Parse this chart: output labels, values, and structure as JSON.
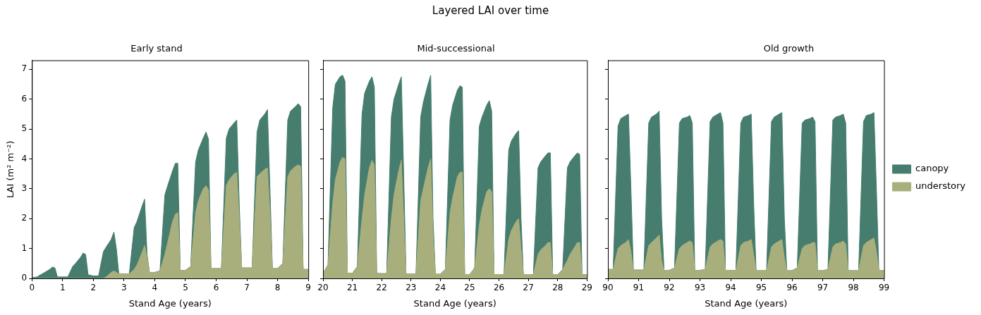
{
  "chart_data": [
    {
      "type": "area",
      "title": "Early stand",
      "annotations": [
        "Layered LAI over time"
      ],
      "xlabel": "Stand Age (years)",
      "ylabel": "LAI (m² m⁻²)",
      "xlim": [
        0,
        9
      ],
      "xticks": [
        0,
        1,
        2,
        3,
        4,
        5,
        6,
        7,
        8,
        9
      ],
      "ylim": [
        0,
        7.3
      ],
      "yticks": [
        0,
        1,
        2,
        3,
        4,
        5,
        6,
        7
      ],
      "grid": false,
      "x": [
        0,
        0.17,
        0.33,
        0.42,
        0.58,
        0.67,
        0.75,
        0.83,
        1,
        1.17,
        1.33,
        1.42,
        1.58,
        1.67,
        1.75,
        1.83,
        2,
        2.17,
        2.33,
        2.42,
        2.58,
        2.67,
        2.75,
        2.83,
        3,
        3.17,
        3.33,
        3.42,
        3.58,
        3.67,
        3.75,
        3.83,
        4,
        4.17,
        4.33,
        4.42,
        4.58,
        4.67,
        4.75,
        4.83,
        5,
        5.17,
        5.33,
        5.42,
        5.58,
        5.67,
        5.75,
        5.83,
        6,
        6.17,
        6.33,
        6.42,
        6.58,
        6.67,
        6.75,
        6.83,
        7,
        7.17,
        7.33,
        7.42,
        7.58,
        7.67,
        7.75,
        7.83,
        8,
        8.17,
        8.33,
        8.42,
        8.58,
        8.67,
        8.75,
        8.83,
        9
      ],
      "series": [
        {
          "color": "#467d6e",
          "values": [
            0.02,
            0.05,
            0.15,
            0.2,
            0.3,
            0.38,
            0.35,
            0.05,
            0.05,
            0.05,
            0.4,
            0.5,
            0.7,
            0.85,
            0.8,
            0.12,
            0.08,
            0.08,
            0.9,
            1.05,
            1.3,
            1.55,
            1.0,
            0.15,
            0.15,
            0.15,
            1.7,
            1.9,
            2.4,
            2.65,
            0.8,
            0.2,
            0.2,
            0.25,
            2.8,
            3.1,
            3.6,
            3.85,
            3.85,
            0.27,
            0.27,
            0.4,
            3.9,
            4.3,
            4.7,
            4.9,
            4.65,
            0.33,
            0.33,
            0.33,
            4.7,
            5.0,
            5.2,
            5.3,
            2.5,
            0.35,
            0.35,
            0.35,
            4.9,
            5.3,
            5.5,
            5.65,
            3.0,
            0.33,
            0.33,
            0.5,
            5.3,
            5.6,
            5.75,
            5.85,
            5.75,
            0.3,
            0.3
          ]
        },
        {
          "color": "#a8af7c",
          "values": [
            0,
            0,
            0,
            0,
            0,
            0,
            0,
            0,
            0,
            0,
            0,
            0,
            0,
            0,
            0,
            0,
            0,
            0,
            0,
            0.05,
            0.2,
            0.25,
            0.2,
            0.15,
            0.15,
            0.15,
            0.3,
            0.45,
            0.85,
            1.1,
            0.7,
            0.2,
            0.2,
            0.25,
            0.8,
            1.2,
            1.9,
            2.15,
            2.2,
            0.27,
            0.27,
            0.4,
            2.2,
            2.6,
            3.0,
            3.1,
            2.95,
            0.33,
            0.33,
            0.33,
            3.1,
            3.3,
            3.5,
            3.55,
            2.0,
            0.35,
            0.35,
            0.35,
            3.4,
            3.5,
            3.65,
            3.7,
            2.2,
            0.33,
            0.33,
            0.5,
            3.4,
            3.6,
            3.75,
            3.8,
            3.75,
            0.3,
            0.3
          ]
        }
      ]
    },
    {
      "type": "area",
      "title": "Mid-successional",
      "xlabel": "Stand Age (years)",
      "xlim": [
        20,
        29
      ],
      "xticks": [
        20,
        21,
        22,
        23,
        24,
        25,
        26,
        27,
        28,
        29
      ],
      "ylim": [
        0,
        7.3
      ],
      "yticks": [
        0,
        1,
        2,
        3,
        4,
        5,
        6,
        7
      ],
      "tick_labels": "x",
      "grid": false,
      "x": [
        20,
        20.17,
        20.33,
        20.42,
        20.58,
        20.67,
        20.75,
        20.83,
        21,
        21.17,
        21.33,
        21.42,
        21.58,
        21.67,
        21.75,
        21.83,
        22,
        22.17,
        22.33,
        22.42,
        22.58,
        22.67,
        22.75,
        22.83,
        23,
        23.17,
        23.33,
        23.42,
        23.58,
        23.67,
        23.75,
        23.83,
        24,
        24.17,
        24.33,
        24.42,
        24.58,
        24.67,
        24.75,
        24.83,
        25,
        25.17,
        25.33,
        25.42,
        25.58,
        25.67,
        25.75,
        25.83,
        26,
        26.17,
        26.33,
        26.42,
        26.58,
        26.67,
        26.75,
        26.83,
        27,
        27.17,
        27.33,
        27.42,
        27.58,
        27.67,
        27.75,
        27.83,
        28,
        28.17,
        28.33,
        28.42,
        28.58,
        28.67,
        28.75,
        28.83,
        29
      ],
      "series": [
        {
          "color": "#467d6e",
          "values": [
            0.17,
            0.45,
            5.7,
            6.5,
            6.75,
            6.8,
            6.6,
            0.17,
            0.17,
            0.4,
            5.5,
            6.2,
            6.6,
            6.75,
            6.4,
            0.17,
            0.16,
            0.16,
            5.4,
            6.0,
            6.5,
            6.75,
            3.5,
            0.15,
            0.15,
            0.15,
            5.4,
            5.9,
            6.5,
            6.8,
            2.0,
            0.14,
            0.14,
            0.3,
            5.3,
            5.8,
            6.3,
            6.45,
            6.4,
            0.13,
            0.13,
            0.35,
            5.1,
            5.4,
            5.8,
            5.95,
            5.6,
            0.13,
            0.13,
            0.13,
            4.3,
            4.6,
            4.85,
            4.95,
            2.0,
            0.12,
            0.12,
            0.12,
            3.7,
            3.9,
            4.1,
            4.2,
            4.2,
            0.12,
            0.12,
            0.3,
            3.7,
            3.9,
            4.1,
            4.2,
            4.15,
            0.12,
            0.12
          ]
        },
        {
          "color": "#a8af7c",
          "values": [
            0.17,
            0.45,
            2.5,
            3.3,
            3.9,
            4.05,
            4.0,
            0.17,
            0.17,
            0.4,
            2.0,
            2.8,
            3.7,
            3.95,
            3.8,
            0.17,
            0.16,
            0.16,
            2.0,
            2.8,
            3.6,
            3.95,
            2.0,
            0.15,
            0.15,
            0.15,
            2.6,
            3.0,
            3.7,
            4.0,
            1.5,
            0.14,
            0.14,
            0.3,
            2.2,
            2.7,
            3.4,
            3.55,
            3.55,
            0.13,
            0.13,
            0.35,
            1.8,
            2.3,
            2.9,
            3.0,
            2.9,
            0.13,
            0.13,
            0.13,
            1.3,
            1.6,
            1.9,
            2.0,
            1.0,
            0.12,
            0.12,
            0.12,
            0.8,
            0.95,
            1.1,
            1.2,
            1.2,
            0.12,
            0.12,
            0.3,
            0.6,
            0.8,
            1.05,
            1.2,
            1.2,
            0.12,
            0.12
          ]
        }
      ]
    },
    {
      "type": "area",
      "title": "Old growth",
      "xlabel": "Stand Age (years)",
      "xlim": [
        90,
        99
      ],
      "xticks": [
        90,
        91,
        92,
        93,
        94,
        95,
        96,
        97,
        98,
        99
      ],
      "ylim": [
        0,
        7.3
      ],
      "yticks": [
        0,
        1,
        2,
        3,
        4,
        5,
        6,
        7
      ],
      "tick_labels": "x",
      "grid": false,
      "legend": "right",
      "x": [
        90,
        90.17,
        90.33,
        90.42,
        90.58,
        90.67,
        90.75,
        90.83,
        91,
        91.17,
        91.33,
        91.42,
        91.58,
        91.67,
        91.75,
        91.83,
        92,
        92.17,
        92.33,
        92.42,
        92.58,
        92.67,
        92.75,
        92.83,
        93,
        93.17,
        93.33,
        93.42,
        93.58,
        93.67,
        93.75,
        93.83,
        94,
        94.17,
        94.33,
        94.42,
        94.58,
        94.67,
        94.75,
        94.83,
        95,
        95.17,
        95.33,
        95.42,
        95.58,
        95.67,
        95.75,
        95.83,
        96,
        96.17,
        96.33,
        96.42,
        96.58,
        96.67,
        96.75,
        96.83,
        97,
        97.17,
        97.33,
        97.42,
        97.58,
        97.67,
        97.75,
        97.83,
        98,
        98.17,
        98.33,
        98.42,
        98.58,
        98.67,
        98.75,
        98.83,
        99
      ],
      "series": [
        {
          "name": "canopy",
          "color": "#467d6e",
          "values": [
            0.3,
            0.3,
            5.1,
            5.35,
            5.45,
            5.5,
            3.0,
            0.28,
            0.28,
            0.28,
            5.2,
            5.4,
            5.5,
            5.6,
            2.0,
            0.27,
            0.27,
            0.35,
            5.2,
            5.35,
            5.4,
            5.45,
            5.2,
            0.27,
            0.27,
            0.3,
            5.25,
            5.4,
            5.5,
            5.55,
            5.2,
            0.27,
            0.27,
            0.27,
            5.2,
            5.4,
            5.45,
            5.5,
            2.5,
            0.26,
            0.26,
            0.26,
            5.25,
            5.4,
            5.5,
            5.55,
            2.0,
            0.26,
            0.26,
            0.35,
            5.2,
            5.3,
            5.35,
            5.4,
            5.25,
            0.26,
            0.26,
            0.3,
            5.3,
            5.4,
            5.45,
            5.5,
            5.2,
            0.26,
            0.26,
            0.26,
            5.25,
            5.45,
            5.5,
            5.55,
            3.0,
            0.26,
            0.26
          ]
        },
        {
          "name": "understory",
          "color": "#a8af7c",
          "values": [
            0.3,
            0.3,
            1.0,
            1.1,
            1.2,
            1.3,
            0.9,
            0.28,
            0.28,
            0.28,
            1.1,
            1.2,
            1.35,
            1.45,
            0.6,
            0.27,
            0.27,
            0.35,
            1.0,
            1.1,
            1.2,
            1.25,
            1.2,
            0.27,
            0.27,
            0.3,
            1.05,
            1.15,
            1.25,
            1.3,
            1.25,
            0.27,
            0.27,
            0.27,
            1.1,
            1.2,
            1.25,
            1.3,
            0.8,
            0.26,
            0.26,
            0.26,
            1.05,
            1.15,
            1.25,
            1.3,
            0.7,
            0.26,
            0.26,
            0.35,
            1.0,
            1.1,
            1.15,
            1.2,
            1.2,
            0.26,
            0.26,
            0.3,
            1.05,
            1.15,
            1.2,
            1.25,
            1.15,
            0.26,
            0.26,
            0.26,
            1.1,
            1.2,
            1.3,
            1.35,
            0.9,
            0.26,
            0.26
          ]
        }
      ]
    }
  ]
}
